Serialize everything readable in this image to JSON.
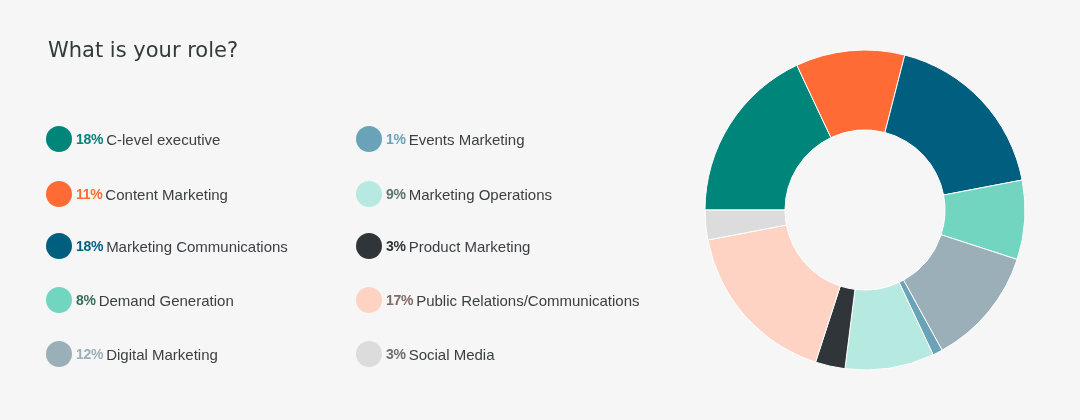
{
  "chart_data": {
    "type": "donut",
    "title": "What is your role?",
    "categories": [
      "C-level executive",
      "Content Marketing",
      "Marketing Communications",
      "Demand Generation",
      "Digital Marketing",
      "Events Marketing",
      "Marketing Operations",
      "Product Marketing",
      "Public Relations/Communications",
      "Social Media"
    ],
    "values": [
      18,
      11,
      18,
      8,
      12,
      1,
      9,
      3,
      17,
      3
    ],
    "value_labels": [
      "18%",
      "11%",
      "18%",
      "8%",
      "12%",
      "1%",
      "9%",
      "3%",
      "17%",
      "3%"
    ],
    "colors": [
      "#00857a",
      "#ff6b35",
      "#005f7f",
      "#72d5c0",
      "#9aafb8",
      "#6aa3b8",
      "#b6e9df",
      "#2f3538",
      "#ffd3c4",
      "#dcdcdc"
    ],
    "legend": "left"
  }
}
